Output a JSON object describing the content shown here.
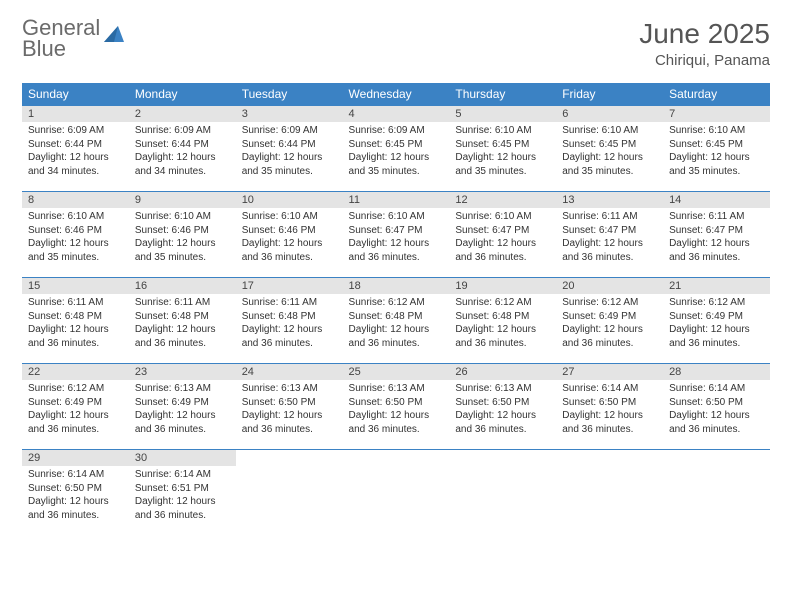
{
  "logo": {
    "line1": "General",
    "line2": "Blue"
  },
  "title": "June 2025",
  "location": "Chiriqui, Panama",
  "colors": {
    "header_bg": "#3b82c4",
    "header_text": "#ffffff",
    "daynum_bg": "#e4e4e4",
    "text": "#333333",
    "logo_gray": "#6b6b6b",
    "logo_blue": "#3b82c4"
  },
  "weekdays": [
    "Sunday",
    "Monday",
    "Tuesday",
    "Wednesday",
    "Thursday",
    "Friday",
    "Saturday"
  ],
  "days": [
    {
      "n": "1",
      "sr": "6:09 AM",
      "ss": "6:44 PM",
      "dl": "12 hours and 34 minutes."
    },
    {
      "n": "2",
      "sr": "6:09 AM",
      "ss": "6:44 PM",
      "dl": "12 hours and 34 minutes."
    },
    {
      "n": "3",
      "sr": "6:09 AM",
      "ss": "6:44 PM",
      "dl": "12 hours and 35 minutes."
    },
    {
      "n": "4",
      "sr": "6:09 AM",
      "ss": "6:45 PM",
      "dl": "12 hours and 35 minutes."
    },
    {
      "n": "5",
      "sr": "6:10 AM",
      "ss": "6:45 PM",
      "dl": "12 hours and 35 minutes."
    },
    {
      "n": "6",
      "sr": "6:10 AM",
      "ss": "6:45 PM",
      "dl": "12 hours and 35 minutes."
    },
    {
      "n": "7",
      "sr": "6:10 AM",
      "ss": "6:45 PM",
      "dl": "12 hours and 35 minutes."
    },
    {
      "n": "8",
      "sr": "6:10 AM",
      "ss": "6:46 PM",
      "dl": "12 hours and 35 minutes."
    },
    {
      "n": "9",
      "sr": "6:10 AM",
      "ss": "6:46 PM",
      "dl": "12 hours and 35 minutes."
    },
    {
      "n": "10",
      "sr": "6:10 AM",
      "ss": "6:46 PM",
      "dl": "12 hours and 36 minutes."
    },
    {
      "n": "11",
      "sr": "6:10 AM",
      "ss": "6:47 PM",
      "dl": "12 hours and 36 minutes."
    },
    {
      "n": "12",
      "sr": "6:10 AM",
      "ss": "6:47 PM",
      "dl": "12 hours and 36 minutes."
    },
    {
      "n": "13",
      "sr": "6:11 AM",
      "ss": "6:47 PM",
      "dl": "12 hours and 36 minutes."
    },
    {
      "n": "14",
      "sr": "6:11 AM",
      "ss": "6:47 PM",
      "dl": "12 hours and 36 minutes."
    },
    {
      "n": "15",
      "sr": "6:11 AM",
      "ss": "6:48 PM",
      "dl": "12 hours and 36 minutes."
    },
    {
      "n": "16",
      "sr": "6:11 AM",
      "ss": "6:48 PM",
      "dl": "12 hours and 36 minutes."
    },
    {
      "n": "17",
      "sr": "6:11 AM",
      "ss": "6:48 PM",
      "dl": "12 hours and 36 minutes."
    },
    {
      "n": "18",
      "sr": "6:12 AM",
      "ss": "6:48 PM",
      "dl": "12 hours and 36 minutes."
    },
    {
      "n": "19",
      "sr": "6:12 AM",
      "ss": "6:48 PM",
      "dl": "12 hours and 36 minutes."
    },
    {
      "n": "20",
      "sr": "6:12 AM",
      "ss": "6:49 PM",
      "dl": "12 hours and 36 minutes."
    },
    {
      "n": "21",
      "sr": "6:12 AM",
      "ss": "6:49 PM",
      "dl": "12 hours and 36 minutes."
    },
    {
      "n": "22",
      "sr": "6:12 AM",
      "ss": "6:49 PM",
      "dl": "12 hours and 36 minutes."
    },
    {
      "n": "23",
      "sr": "6:13 AM",
      "ss": "6:49 PM",
      "dl": "12 hours and 36 minutes."
    },
    {
      "n": "24",
      "sr": "6:13 AM",
      "ss": "6:50 PM",
      "dl": "12 hours and 36 minutes."
    },
    {
      "n": "25",
      "sr": "6:13 AM",
      "ss": "6:50 PM",
      "dl": "12 hours and 36 minutes."
    },
    {
      "n": "26",
      "sr": "6:13 AM",
      "ss": "6:50 PM",
      "dl": "12 hours and 36 minutes."
    },
    {
      "n": "27",
      "sr": "6:14 AM",
      "ss": "6:50 PM",
      "dl": "12 hours and 36 minutes."
    },
    {
      "n": "28",
      "sr": "6:14 AM",
      "ss": "6:50 PM",
      "dl": "12 hours and 36 minutes."
    },
    {
      "n": "29",
      "sr": "6:14 AM",
      "ss": "6:50 PM",
      "dl": "12 hours and 36 minutes."
    },
    {
      "n": "30",
      "sr": "6:14 AM",
      "ss": "6:51 PM",
      "dl": "12 hours and 36 minutes."
    }
  ],
  "labels": {
    "sunrise": "Sunrise:",
    "sunset": "Sunset:",
    "daylight": "Daylight:"
  }
}
